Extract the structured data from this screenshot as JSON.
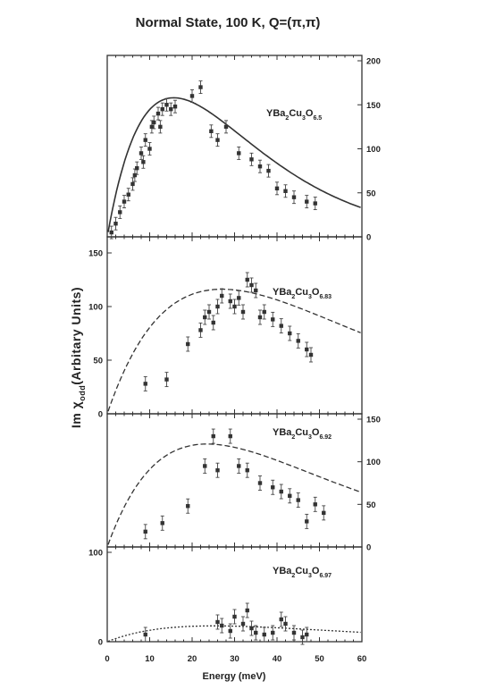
{
  "chart_data": {
    "type": "scatter",
    "title": "Normal State,   100 K,  Q=(π,π)",
    "xlabel": "Energy (meV)",
    "ylabel": "Im χ odd(Arbitary Units)",
    "ylabel_parts": {
      "pre": "Im χ",
      "sub": "odd",
      "post": "(Arbitary Units)"
    },
    "x_ticks": [
      "0",
      "10",
      "20",
      "30",
      "40",
      "50",
      "60"
    ],
    "xlim": [
      0,
      60
    ],
    "panels": [
      {
        "sample": {
          "base": "YBa",
          "s1": "2",
          "mid1": "Cu",
          "s2": "3",
          "mid2": "O",
          "s3": "6.5"
        },
        "ylim": [
          0,
          200
        ],
        "right_ticks": [
          "0",
          "50",
          "100",
          "150",
          "200"
        ],
        "left_ticks": [],
        "curve_peak_x": 18,
        "points": [
          {
            "x": 1,
            "y": 5
          },
          {
            "x": 2,
            "y": 15
          },
          {
            "x": 3,
            "y": 28
          },
          {
            "x": 4,
            "y": 40
          },
          {
            "x": 5,
            "y": 48
          },
          {
            "x": 6,
            "y": 60
          },
          {
            "x": 6.5,
            "y": 70
          },
          {
            "x": 7,
            "y": 78
          },
          {
            "x": 8,
            "y": 95
          },
          {
            "x": 8.5,
            "y": 85
          },
          {
            "x": 9,
            "y": 110
          },
          {
            "x": 10,
            "y": 100
          },
          {
            "x": 10.5,
            "y": 125
          },
          {
            "x": 11,
            "y": 130
          },
          {
            "x": 12,
            "y": 140
          },
          {
            "x": 12.5,
            "y": 125
          },
          {
            "x": 13,
            "y": 145
          },
          {
            "x": 14,
            "y": 150
          },
          {
            "x": 15,
            "y": 145
          },
          {
            "x": 16,
            "y": 148
          },
          {
            "x": 20,
            "y": 160
          },
          {
            "x": 22,
            "y": 170
          },
          {
            "x": 24.5,
            "y": 120
          },
          {
            "x": 26,
            "y": 110
          },
          {
            "x": 28,
            "y": 125
          },
          {
            "x": 31,
            "y": 95
          },
          {
            "x": 34,
            "y": 88
          },
          {
            "x": 36,
            "y": 80
          },
          {
            "x": 38,
            "y": 75
          },
          {
            "x": 40,
            "y": 55
          },
          {
            "x": 42,
            "y": 52
          },
          {
            "x": 44,
            "y": 45
          },
          {
            "x": 47,
            "y": 40
          },
          {
            "x": 49,
            "y": 38
          }
        ]
      },
      {
        "sample": {
          "base": "YBa",
          "s1": "2",
          "mid1": "Cu",
          "s2": "3",
          "mid2": "O",
          "s3": "6.83"
        },
        "ylim": [
          0,
          160
        ],
        "right_ticks": [],
        "left_ticks": [
          "0",
          "50",
          "100",
          "150"
        ],
        "curve_peak_x": 31,
        "points": [
          {
            "x": 9,
            "y": 28
          },
          {
            "x": 14,
            "y": 32
          },
          {
            "x": 19,
            "y": 65
          },
          {
            "x": 22,
            "y": 78
          },
          {
            "x": 23,
            "y": 90
          },
          {
            "x": 24,
            "y": 95
          },
          {
            "x": 25,
            "y": 85
          },
          {
            "x": 26,
            "y": 100
          },
          {
            "x": 27,
            "y": 110
          },
          {
            "x": 29,
            "y": 105
          },
          {
            "x": 30,
            "y": 100
          },
          {
            "x": 31,
            "y": 108
          },
          {
            "x": 32,
            "y": 95
          },
          {
            "x": 33,
            "y": 125
          },
          {
            "x": 34,
            "y": 120
          },
          {
            "x": 35,
            "y": 115
          },
          {
            "x": 36,
            "y": 90
          },
          {
            "x": 37,
            "y": 95
          },
          {
            "x": 39,
            "y": 88
          },
          {
            "x": 41,
            "y": 82
          },
          {
            "x": 43,
            "y": 75
          },
          {
            "x": 45,
            "y": 68
          },
          {
            "x": 47,
            "y": 60
          },
          {
            "x": 48,
            "y": 55
          }
        ]
      },
      {
        "sample": {
          "base": "YBa",
          "s1": "2",
          "mid1": "Cu",
          "s2": "3",
          "mid2": "O",
          "s3": "6.92"
        },
        "ylim": [
          0,
          150
        ],
        "right_ticks": [
          "0",
          "50",
          "100",
          "150"
        ],
        "left_ticks": [],
        "curve_peak_x": 27,
        "points": [
          {
            "x": 9,
            "y": 18
          },
          {
            "x": 13,
            "y": 28
          },
          {
            "x": 19,
            "y": 48
          },
          {
            "x": 23,
            "y": 95
          },
          {
            "x": 25,
            "y": 130
          },
          {
            "x": 26,
            "y": 90
          },
          {
            "x": 29,
            "y": 130
          },
          {
            "x": 31,
            "y": 95
          },
          {
            "x": 33,
            "y": 90
          },
          {
            "x": 36,
            "y": 75
          },
          {
            "x": 39,
            "y": 70
          },
          {
            "x": 41,
            "y": 65
          },
          {
            "x": 43,
            "y": 60
          },
          {
            "x": 45,
            "y": 55
          },
          {
            "x": 47,
            "y": 30
          },
          {
            "x": 49,
            "y": 50
          },
          {
            "x": 51,
            "y": 40
          }
        ]
      },
      {
        "sample": {
          "base": "YBa",
          "s1": "2",
          "mid1": "Cu",
          "s2": "3",
          "mid2": "O",
          "s3": "6.97"
        },
        "ylim": [
          0,
          100
        ],
        "right_ticks": [],
        "left_ticks": [
          "0",
          "100"
        ],
        "curve_peak_x": 29,
        "points": [
          {
            "x": 9,
            "y": 8
          },
          {
            "x": 26,
            "y": 22
          },
          {
            "x": 27,
            "y": 18
          },
          {
            "x": 29,
            "y": 12
          },
          {
            "x": 30,
            "y": 28
          },
          {
            "x": 32,
            "y": 20
          },
          {
            "x": 33,
            "y": 35
          },
          {
            "x": 34,
            "y": 15
          },
          {
            "x": 35,
            "y": 10
          },
          {
            "x": 37,
            "y": 8
          },
          {
            "x": 39,
            "y": 10
          },
          {
            "x": 41,
            "y": 25
          },
          {
            "x": 42,
            "y": 20
          },
          {
            "x": 44,
            "y": 10
          },
          {
            "x": 46,
            "y": 5
          },
          {
            "x": 47,
            "y": 8
          }
        ]
      }
    ]
  }
}
